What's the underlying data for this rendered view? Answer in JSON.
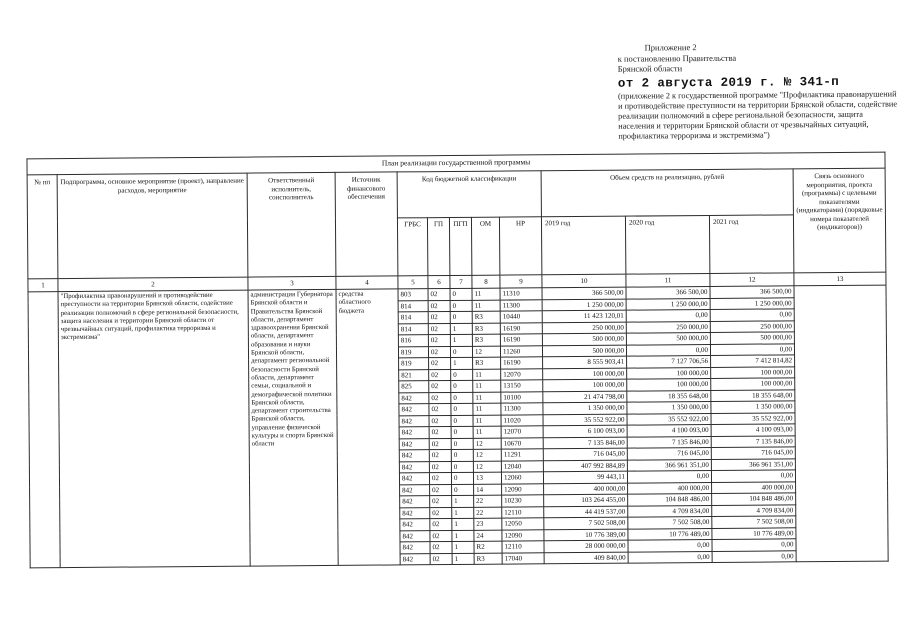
{
  "annex": {
    "line1": "Приложение 2",
    "line2": "к постановлению Правительства",
    "line3": "Брянской области",
    "date_line": "от 2 августа 2019 г. № 341-п",
    "note": "(приложение 2 к государственной программе \"Профилактика правонарушений и противодействие преступности на территории Брянской области, содействие реализации полномочий в сфере региональной безопасности, защита населения и территории Брянской области от чрезвычайных ситуаций, профилактика терроризма и экстремизма\")"
  },
  "table": {
    "title": "План реализации государственной программы",
    "headers": {
      "num": "№ пп",
      "subprogram": "Подпрограмма, основное мероприятие (проект), направление расходов, мероприятие",
      "executor": "Ответственный исполнитель, соисполнитель",
      "source": "Источник финансового обеспечения",
      "budget_code": "Код бюджетной классификации",
      "amount": "Объем средств на реализацию, рублей",
      "code_cols": [
        "ГРБС",
        "ГП",
        "ПГП",
        "ОМ",
        "НР"
      ],
      "year_cols": [
        "2019 год",
        "2020 год",
        "2021 год"
      ],
      "relation": "Связь основного мероприятия, проекта (программы) с целевыми показателями (индикаторами) (порядковые номера показателей (индикаторов))"
    },
    "col_numbers": [
      "1",
      "2",
      "3",
      "4",
      "5",
      "6",
      "7",
      "8",
      "9",
      "10",
      "11",
      "12",
      "13"
    ],
    "body": {
      "subprogram": "\"Профилактика правонарушений и противодействие преступности на территории Брянской области, содействие реализации полномочий в сфере региональной безопасности, защита населения и территории Брянской области от чрезвычайных ситуаций, профилактика терроризма и экстремизма\"",
      "executor": "администрация Губернатора Брянской области и Правительства Брянской области, департамент здравоохранения Брянской области, департамент образования и науки Брянской области, департамент региональной безопасности Брянской области, департамент семьи, социальной и демографической политики Брянской области, департамент строительства Брянской области, управление физической культуры и спорта Брянской области",
      "source": "средства областного бюджета",
      "rows": [
        {
          "grbs": "803",
          "gp": "02",
          "pgp": "0",
          "om": "11",
          "nr": "11310",
          "y2019": "366 500,00",
          "y2020": "366 500,00",
          "y2021": "366 500,00"
        },
        {
          "grbs": "814",
          "gp": "02",
          "pgp": "0",
          "om": "11",
          "nr": "11300",
          "y2019": "1 250 000,00",
          "y2020": "1 250 000,00",
          "y2021": "1 250 000,00"
        },
        {
          "grbs": "814",
          "gp": "02",
          "pgp": "0",
          "om": "R3",
          "nr": "10440",
          "y2019": "11 423 120,01",
          "y2020": "0,00",
          "y2021": "0,00"
        },
        {
          "grbs": "814",
          "gp": "02",
          "pgp": "1",
          "om": "R3",
          "nr": "16190",
          "y2019": "250 000,00",
          "y2020": "250 000,00",
          "y2021": "250 000,00"
        },
        {
          "grbs": "816",
          "gp": "02",
          "pgp": "1",
          "om": "R3",
          "nr": "16190",
          "y2019": "500 000,00",
          "y2020": "500 000,00",
          "y2021": "500 000,00"
        },
        {
          "grbs": "819",
          "gp": "02",
          "pgp": "0",
          "om": "12",
          "nr": "11260",
          "y2019": "500 000,00",
          "y2020": "0,00",
          "y2021": "0,00"
        },
        {
          "grbs": "819",
          "gp": "02",
          "pgp": "1",
          "om": "R3",
          "nr": "16190",
          "y2019": "8 555 903,41",
          "y2020": "7 127 706,56",
          "y2021": "7 412 814,82"
        },
        {
          "grbs": "821",
          "gp": "02",
          "pgp": "0",
          "om": "11",
          "nr": "12070",
          "y2019": "100 000,00",
          "y2020": "100 000,00",
          "y2021": "100 000,00"
        },
        {
          "grbs": "825",
          "gp": "02",
          "pgp": "0",
          "om": "11",
          "nr": "13150",
          "y2019": "100 000,00",
          "y2020": "100 000,00",
          "y2021": "100 000,00"
        },
        {
          "grbs": "842",
          "gp": "02",
          "pgp": "0",
          "om": "11",
          "nr": "10100",
          "y2019": "21 474 798,00",
          "y2020": "18 355 648,00",
          "y2021": "18 355 648,00"
        },
        {
          "grbs": "842",
          "gp": "02",
          "pgp": "0",
          "om": "11",
          "nr": "11300",
          "y2019": "1 350 000,00",
          "y2020": "1 350 000,00",
          "y2021": "1 350 000,00"
        },
        {
          "grbs": "842",
          "gp": "02",
          "pgp": "0",
          "om": "11",
          "nr": "11020",
          "y2019": "35 552 922,00",
          "y2020": "35 552 922,00",
          "y2021": "35 552 922,00"
        },
        {
          "grbs": "842",
          "gp": "02",
          "pgp": "0",
          "om": "11",
          "nr": "12070",
          "y2019": "6 100 093,00",
          "y2020": "4 100 093,00",
          "y2021": "4 100 093,00"
        },
        {
          "grbs": "842",
          "gp": "02",
          "pgp": "0",
          "om": "12",
          "nr": "10670",
          "y2019": "7 135 846,00",
          "y2020": "7 135 846,00",
          "y2021": "7 135 846,00"
        },
        {
          "grbs": "842",
          "gp": "02",
          "pgp": "0",
          "om": "12",
          "nr": "11291",
          "y2019": "716 045,00",
          "y2020": "716 045,00",
          "y2021": "716 045,00"
        },
        {
          "grbs": "842",
          "gp": "02",
          "pgp": "0",
          "om": "12",
          "nr": "12040",
          "y2019": "407 992 884,89",
          "y2020": "366 961 351,00",
          "y2021": "366 961 351,00"
        },
        {
          "grbs": "842",
          "gp": "02",
          "pgp": "0",
          "om": "13",
          "nr": "12060",
          "y2019": "99 443,11",
          "y2020": "0,00",
          "y2021": "0,00"
        },
        {
          "grbs": "842",
          "gp": "02",
          "pgp": "0",
          "om": "14",
          "nr": "12090",
          "y2019": "400 000,00",
          "y2020": "400 000,00",
          "y2021": "400 000,00"
        },
        {
          "grbs": "842",
          "gp": "02",
          "pgp": "1",
          "om": "22",
          "nr": "10230",
          "y2019": "103 264 455,00",
          "y2020": "104 848 486,00",
          "y2021": "104 848 486,00"
        },
        {
          "grbs": "842",
          "gp": "02",
          "pgp": "1",
          "om": "22",
          "nr": "12110",
          "y2019": "44 419 537,00",
          "y2020": "4 709 834,00",
          "y2021": "4 709 834,00"
        },
        {
          "grbs": "842",
          "gp": "02",
          "pgp": "1",
          "om": "23",
          "nr": "12050",
          "y2019": "7 502 508,00",
          "y2020": "7 502 508,00",
          "y2021": "7 502 508,00"
        },
        {
          "grbs": "842",
          "gp": "02",
          "pgp": "1",
          "om": "24",
          "nr": "12090",
          "y2019": "10 776 389,00",
          "y2020": "10 776 489,00",
          "y2021": "10 776 489,00"
        },
        {
          "grbs": "842",
          "gp": "02",
          "pgp": "1",
          "om": "R2",
          "nr": "12110",
          "y2019": "28 000 000,00",
          "y2020": "0,00",
          "y2021": "0,00"
        },
        {
          "grbs": "842",
          "gp": "02",
          "pgp": "1",
          "om": "R3",
          "nr": "17040",
          "y2019": "409 840,00",
          "y2020": "0,00",
          "y2021": "0,00"
        }
      ]
    }
  }
}
